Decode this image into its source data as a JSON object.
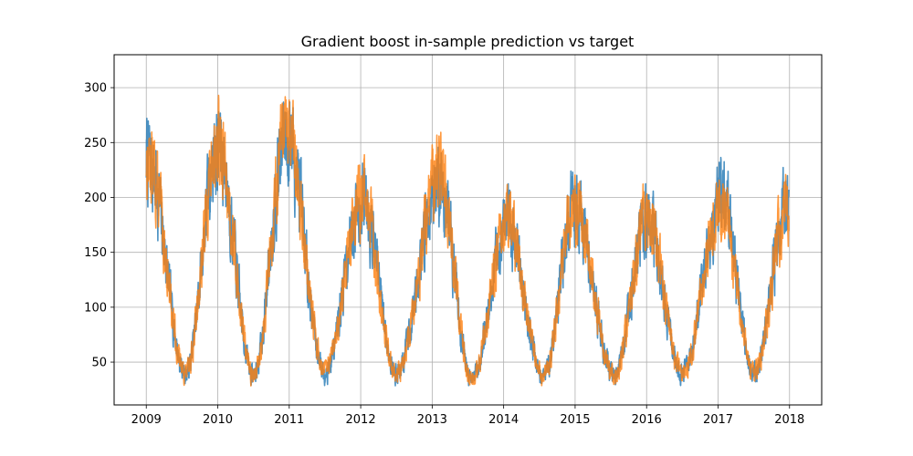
{
  "chart_data": {
    "type": "line",
    "title": "Gradient boost in-sample prediction vs target",
    "xlabel": "",
    "ylabel": "",
    "x_range": [
      2008.55,
      2018.45
    ],
    "ylim": [
      11,
      330
    ],
    "x_ticks": [
      2009,
      2010,
      2011,
      2012,
      2013,
      2014,
      2015,
      2016,
      2017,
      2018
    ],
    "x_tick_labels": [
      "2009",
      "2010",
      "2011",
      "2012",
      "2013",
      "2014",
      "2015",
      "2016",
      "2017",
      "2018"
    ],
    "y_ticks": [
      50,
      100,
      150,
      200,
      250,
      300
    ],
    "y_tick_labels": [
      "50",
      "100",
      "150",
      "200",
      "250",
      "300"
    ],
    "grid": true,
    "legend": "none",
    "x_start": 2009.0,
    "x_end": 2017.99,
    "series_note": "two overlapping daily series: target (blue) and in-sample prediction (orange); values approximate, reconstructed from seasonal envelope",
    "series": [
      {
        "color": "#1f77b4",
        "opacity": 0.8,
        "seed": 7,
        "noise": 28
      },
      {
        "color": "#ff7f0e",
        "opacity": 0.8,
        "seed": 13,
        "noise": 26
      }
    ],
    "seasonal_peaks": [
      {
        "x": 2009.02,
        "y": 235
      },
      {
        "x": 2010.0,
        "y": 245
      },
      {
        "x": 2010.96,
        "y": 255
      },
      {
        "x": 2012.02,
        "y": 200
      },
      {
        "x": 2013.1,
        "y": 215
      },
      {
        "x": 2014.05,
        "y": 175
      },
      {
        "x": 2015.0,
        "y": 190
      },
      {
        "x": 2016.0,
        "y": 180
      },
      {
        "x": 2017.05,
        "y": 195
      },
      {
        "x": 2018.0,
        "y": 200
      }
    ],
    "seasonal_troughs": [
      {
        "x": 2009.55,
        "y": 40
      },
      {
        "x": 2010.5,
        "y": 38
      },
      {
        "x": 2011.5,
        "y": 42
      },
      {
        "x": 2012.5,
        "y": 40
      },
      {
        "x": 2013.55,
        "y": 35
      },
      {
        "x": 2014.55,
        "y": 37
      },
      {
        "x": 2015.55,
        "y": 38
      },
      {
        "x": 2016.5,
        "y": 40
      },
      {
        "x": 2017.5,
        "y": 40
      }
    ]
  }
}
